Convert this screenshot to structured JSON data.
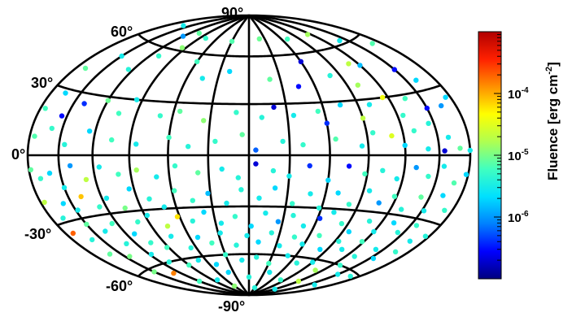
{
  "chart_data": {
    "type": "scatter",
    "projection": "aitoff-hammer all-sky",
    "lat_labels": [
      "90°",
      "60°",
      "30°",
      "0°",
      "-30°",
      "-60°",
      "-90°"
    ],
    "lat_values": [
      90,
      60,
      30,
      0,
      -30,
      -60,
      -90
    ],
    "colorbar": {
      "title": "Fluence [erg cm",
      "title_exp": "-2",
      "title_close": "]",
      "scale": "log",
      "range": [
        1e-07,
        0.001
      ],
      "tick_bases": [
        "10",
        "10",
        "10"
      ],
      "tick_exps": [
        "-4",
        "-5",
        "-6"
      ],
      "tick_values": [
        0.0001,
        1e-05,
        1e-06
      ],
      "colormap": [
        "#00007f",
        "#0000ff",
        "#0080ff",
        "#00e0ff",
        "#40ffc0",
        "#b0ff50",
        "#ffff00",
        "#ff9000",
        "#ff2000",
        "#b00000"
      ]
    },
    "points_note": "approx 300 points, each (lon_deg, lat_deg, fluence)",
    "points": [
      [
        -160,
        72,
        3e-06
      ],
      [
        -120,
        68,
        1e-06
      ],
      [
        -105,
        72,
        8e-06
      ],
      [
        -80,
        70,
        5e-06
      ],
      [
        -30,
        70,
        7e-06
      ],
      [
        20,
        72,
        9e-06
      ],
      [
        70,
        70,
        6e-06
      ],
      [
        115,
        70,
        1.5e-05
      ],
      [
        140,
        62,
        3e-06
      ],
      [
        -170,
        40,
        8e-06
      ],
      [
        -150,
        50,
        3e-06
      ],
      [
        -125,
        45,
        4e-06
      ],
      [
        -110,
        55,
        5e-06
      ],
      [
        -95,
        62,
        1.2e-05
      ],
      [
        -60,
        55,
        6e-06
      ],
      [
        -45,
        45,
        3e-06
      ],
      [
        -20,
        50,
        2e-06
      ],
      [
        20,
        45,
        8e-06
      ],
      [
        45,
        40,
        3e-07
      ],
      [
        60,
        55,
        2e-07
      ],
      [
        80,
        45,
        4e-06
      ],
      [
        100,
        38,
        1.5e-05
      ],
      [
        110,
        50,
        2e-05
      ],
      [
        120,
        48,
        1.5e-06
      ],
      [
        150,
        42,
        3e-07
      ],
      [
        170,
        55,
        7e-06
      ],
      [
        160,
        35,
        2e-06
      ],
      [
        -175,
        20,
        6e-06
      ],
      [
        -165,
        28,
        2e-06
      ],
      [
        -155,
        18,
        3e-07
      ],
      [
        -140,
        25,
        4e-07
      ],
      [
        -120,
        28,
        9e-06
      ],
      [
        -105,
        22,
        6e-06
      ],
      [
        -95,
        30,
        3e-06
      ],
      [
        -70,
        22,
        5e-06
      ],
      [
        -55,
        25,
        8e-06
      ],
      [
        -35,
        20,
        1.2e-05
      ],
      [
        -10,
        25,
        5e-06
      ],
      [
        10,
        22,
        4e-06
      ],
      [
        20,
        28,
        2e-07
      ],
      [
        35,
        23,
        3e-06
      ],
      [
        55,
        25,
        6e-06
      ],
      [
        60,
        18,
        4e-07
      ],
      [
        75,
        28,
        2e-06
      ],
      [
        90,
        20,
        2e-05
      ],
      [
        100,
        27,
        3e-06
      ],
      [
        115,
        30,
        4e-05
      ],
      [
        125,
        20,
        5e-06
      ],
      [
        135,
        28,
        6e-06
      ],
      [
        150,
        22,
        3e-07
      ],
      [
        165,
        22,
        1e-06
      ],
      [
        175,
        25,
        2e-06
      ],
      [
        110,
        10,
        3e-05
      ],
      [
        130,
        12,
        5e-06
      ],
      [
        145,
        15,
        4e-06
      ],
      [
        160,
        8,
        3e-06
      ],
      [
        -175,
        8,
        7e-06
      ],
      [
        -160,
        12,
        5e-06
      ],
      [
        -145,
        5,
        4e-06
      ],
      [
        -125,
        12,
        2e-06
      ],
      [
        -105,
        8,
        6e-06
      ],
      [
        -85,
        6,
        3e-06
      ],
      [
        -60,
        10,
        6e-06
      ],
      [
        -45,
        5,
        4e-06
      ],
      [
        -25,
        8,
        5e-06
      ],
      [
        -5,
        12,
        8e-06
      ],
      [
        5,
        3,
        6e-07
      ],
      [
        25,
        8,
        4e-06
      ],
      [
        40,
        6,
        5e-06
      ],
      [
        65,
        9,
        7e-06
      ],
      [
        85,
        5,
        3e-06
      ],
      [
        95,
        12,
        5e-06
      ],
      [
        120,
        5,
        2e-06
      ],
      [
        140,
        3,
        3e-06
      ],
      [
        155,
        2,
        2e-07
      ],
      [
        170,
        3,
        8e-06
      ],
      [
        180,
        2,
        3e-06
      ],
      [
        -178,
        -6,
        8e-06
      ],
      [
        -170,
        -10,
        5e-06
      ],
      [
        -160,
        -8,
        2e-06
      ],
      [
        -150,
        -15,
        3e-06
      ],
      [
        -140,
        -5,
        1e-06
      ],
      [
        -128,
        -12,
        2e-05
      ],
      [
        -115,
        -6,
        3e-06
      ],
      [
        -100,
        -10,
        6e-06
      ],
      [
        -85,
        -8,
        1.5e-05
      ],
      [
        -70,
        -12,
        3e-06
      ],
      [
        -55,
        -6,
        5e-06
      ],
      [
        -38,
        -10,
        8e-06
      ],
      [
        -20,
        -8,
        3e-06
      ],
      [
        -8,
        -13,
        4e-06
      ],
      [
        5,
        -5,
        2e-07
      ],
      [
        18,
        -9,
        4e-06
      ],
      [
        30,
        -12,
        3e-06
      ],
      [
        45,
        -6,
        4e-07
      ],
      [
        60,
        -14,
        2e-06
      ],
      [
        75,
        -6,
        3e-07
      ],
      [
        88,
        -10,
        6e-06
      ],
      [
        102,
        -8,
        4e-06
      ],
      [
        115,
        -12,
        3e-06
      ],
      [
        130,
        -6,
        1e-06
      ],
      [
        142,
        -10,
        5e-06
      ],
      [
        155,
        -5,
        3e-06
      ],
      [
        168,
        -12,
        7e-06
      ],
      [
        178,
        -8,
        2e-06
      ],
      [
        -176,
        -20,
        2e-05
      ],
      [
        -168,
        -28,
        4e-06
      ],
      [
        -158,
        -22,
        2e-06
      ],
      [
        -148,
        -26,
        3e-06
      ],
      [
        -138,
        -20,
        8e-05
      ],
      [
        -126,
        -26,
        5e-06
      ],
      [
        -116,
        -22,
        3e-06
      ],
      [
        -104,
        -28,
        1e-05
      ],
      [
        -94,
        -18,
        2e-06
      ],
      [
        -80,
        -24,
        4e-06
      ],
      [
        -70,
        -29,
        3e-06
      ],
      [
        -58,
        -20,
        6e-06
      ],
      [
        -45,
        -26,
        5e-06
      ],
      [
        -32,
        -22,
        1.5e-06
      ],
      [
        -18,
        -28,
        3e-06
      ],
      [
        -6,
        -20,
        4e-06
      ],
      [
        8,
        -25,
        3e-06
      ],
      [
        20,
        -19,
        2e-06
      ],
      [
        35,
        -28,
        5e-06
      ],
      [
        48,
        -22,
        3e-06
      ],
      [
        58,
        -30,
        4e-06
      ],
      [
        70,
        -21,
        2e-06
      ],
      [
        82,
        -27,
        5e-06
      ],
      [
        95,
        -19,
        3e-06
      ],
      [
        107,
        -25,
        1e-06
      ],
      [
        118,
        -21,
        6e-06
      ],
      [
        130,
        -27,
        4e-06
      ],
      [
        142,
        -20,
        8e-06
      ],
      [
        152,
        -26,
        3e-06
      ],
      [
        162,
        -18,
        2e-06
      ],
      [
        172,
        -24,
        5e-06
      ],
      [
        -172,
        -35,
        0.0002
      ],
      [
        -160,
        -40,
        4e-06
      ],
      [
        -150,
        -33,
        8e-06
      ],
      [
        -138,
        -38,
        3e-06
      ],
      [
        -125,
        -35,
        6e-06
      ],
      [
        -112,
        -42,
        2e-06
      ],
      [
        -100,
        -36,
        5e-06
      ],
      [
        -88,
        -33,
        3e-06
      ],
      [
        -75,
        -40,
        2e-05
      ],
      [
        -62,
        -35,
        6e-05
      ],
      [
        -50,
        -38,
        4e-06
      ],
      [
        -38,
        -33,
        2e-06
      ],
      [
        -25,
        -40,
        3e-06
      ],
      [
        -12,
        -36,
        5e-06
      ],
      [
        2,
        -42,
        2e-06
      ],
      [
        14,
        -34,
        3e-06
      ],
      [
        26,
        -39,
        1e-06
      ],
      [
        38,
        -35,
        4e-06
      ],
      [
        50,
        -41,
        3e-06
      ],
      [
        62,
        -36,
        4e-07
      ],
      [
        72,
        -32,
        3e-06
      ],
      [
        84,
        -38,
        5e-06
      ],
      [
        96,
        -42,
        2e-06
      ],
      [
        108,
        -35,
        4e-06
      ],
      [
        120,
        -40,
        3e-06
      ],
      [
        132,
        -34,
        2e-06
      ],
      [
        144,
        -38,
        4e-06
      ],
      [
        156,
        -33,
        5e-06
      ],
      [
        166,
        -40,
        3e-06
      ],
      [
        176,
        -36,
        4e-06
      ],
      [
        -162,
        -48,
        8e-06
      ],
      [
        -145,
        -52,
        1e-05
      ],
      [
        -130,
        -46,
        4e-06
      ],
      [
        -118,
        -54,
        3e-06
      ],
      [
        -104,
        -48,
        5e-06
      ],
      [
        -92,
        -52,
        6e-06
      ],
      [
        -78,
        -46,
        3e-06
      ],
      [
        -66,
        -54,
        4e-06
      ],
      [
        -52,
        -48,
        2e-06
      ],
      [
        -40,
        -52,
        6e-06
      ],
      [
        -28,
        -46,
        3e-06
      ],
      [
        -14,
        -54,
        4e-06
      ],
      [
        -2,
        -48,
        3e-06
      ],
      [
        10,
        -52,
        2e-06
      ],
      [
        22,
        -46,
        4e-06
      ],
      [
        34,
        -54,
        3e-06
      ],
      [
        46,
        -48,
        5e-06
      ],
      [
        58,
        -52,
        3e-06
      ],
      [
        70,
        -46,
        6e-06
      ],
      [
        82,
        -54,
        2e-06
      ],
      [
        94,
        -48,
        4e-06
      ],
      [
        106,
        -52,
        3e-06
      ],
      [
        118,
        -46,
        6e-06
      ],
      [
        130,
        -54,
        4e-06
      ],
      [
        142,
        -48,
        3e-06
      ],
      [
        154,
        -52,
        2e-06
      ],
      [
        166,
        -46,
        5e-06
      ],
      [
        -150,
        -62,
        1e-05
      ],
      [
        -130,
        -66,
        0.00015
      ],
      [
        -110,
        -60,
        4e-06
      ],
      [
        -90,
        -64,
        6e-06
      ],
      [
        -70,
        -62,
        3e-06
      ],
      [
        -50,
        -66,
        2e-06
      ],
      [
        -30,
        -60,
        5e-06
      ],
      [
        -10,
        -64,
        3e-06
      ],
      [
        10,
        -62,
        4e-06
      ],
      [
        30,
        -66,
        6e-06
      ],
      [
        50,
        -60,
        3e-06
      ],
      [
        70,
        -64,
        4e-06
      ],
      [
        90,
        -62,
        3e-06
      ],
      [
        110,
        -66,
        1.5e-05
      ],
      [
        130,
        -60,
        5e-06
      ],
      [
        150,
        -64,
        3e-06
      ],
      [
        170,
        -62,
        4e-06
      ],
      [
        -120,
        -74,
        6e-06
      ],
      [
        -80,
        -76,
        3e-06
      ],
      [
        -40,
        -72,
        2e-06
      ],
      [
        0,
        -76,
        4e-06
      ],
      [
        40,
        -72,
        3e-06
      ],
      [
        80,
        -76,
        5e-06
      ],
      [
        120,
        -74,
        2e-05
      ],
      [
        160,
        -72,
        3e-06
      ],
      [
        -60,
        -82,
        1.2e-05
      ],
      [
        30,
        -84,
        4e-06
      ],
      [
        120,
        -82,
        3e-06
      ]
    ]
  }
}
